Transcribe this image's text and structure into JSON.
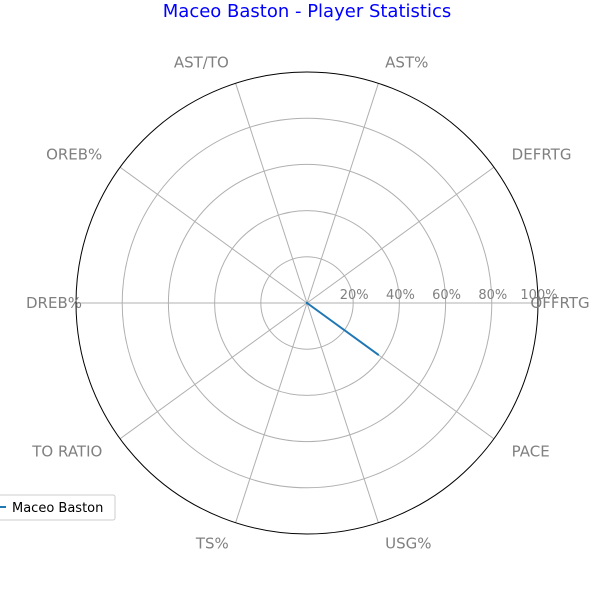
{
  "colors": {
    "title": "#0000ff",
    "series": "#1f77b4",
    "grid": "#b0b0b0",
    "outer_circle": "#000000",
    "label": "#808080"
  },
  "chart_data": {
    "type": "radar",
    "title": "Maceo Baston - Player Statistics",
    "categories": [
      "OFFRTG",
      "DEFRTG",
      "AST%",
      "AST/TO",
      "OREB%",
      "DREB%",
      "TO RATIO",
      "TS%",
      "USG%",
      "PACE"
    ],
    "rtick_labels": [
      "20%",
      "40%",
      "60%",
      "80%",
      "100%"
    ],
    "rticks": [
      0.2,
      0.4,
      0.6,
      0.8,
      1.0
    ],
    "rlim": [
      0,
      1
    ],
    "grid": true,
    "legend_position": "lower-left",
    "series": [
      {
        "name": "Maceo Baston",
        "values": [
          0,
          0,
          0,
          0,
          0,
          0,
          0,
          0,
          0,
          0.38
        ]
      }
    ]
  }
}
